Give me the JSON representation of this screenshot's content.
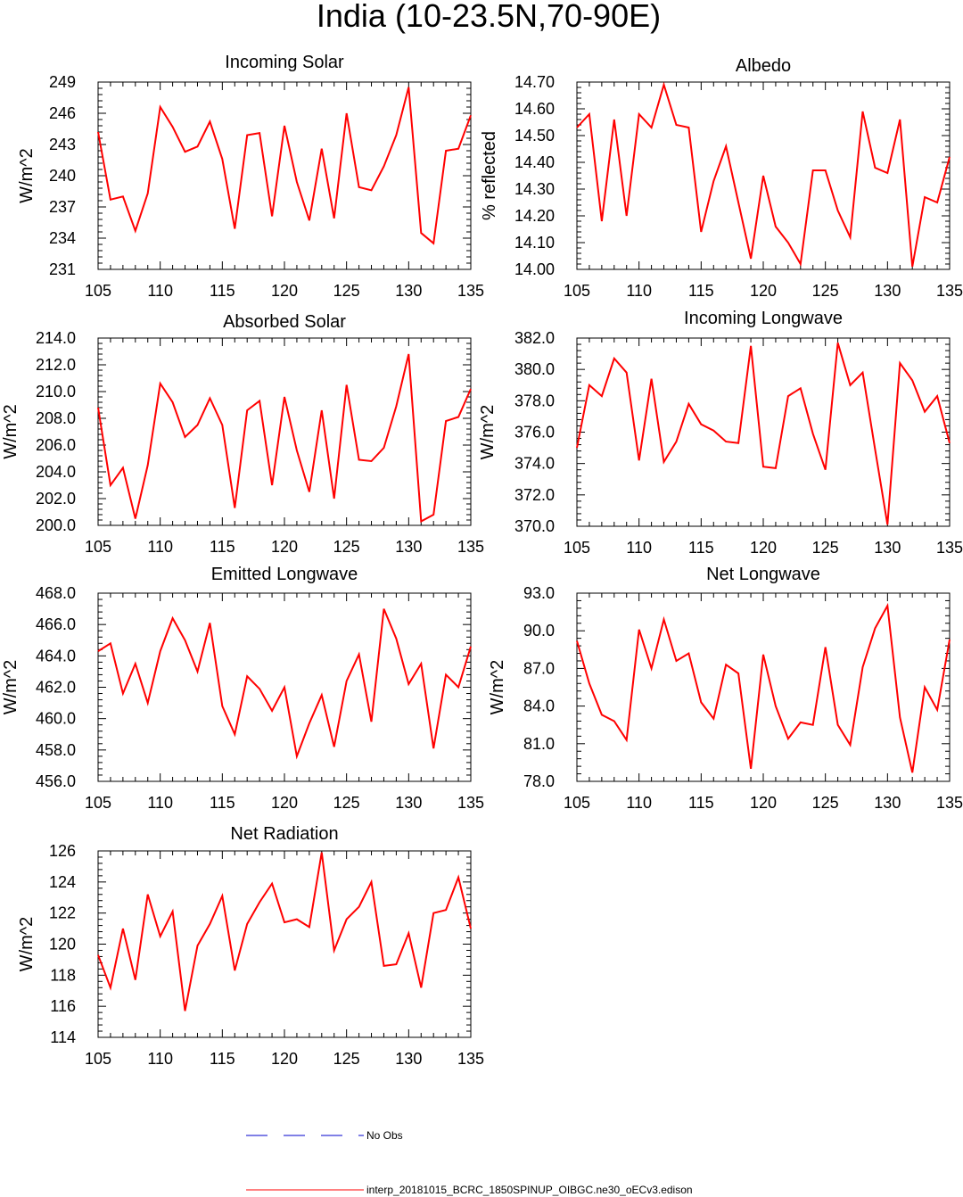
{
  "figure": {
    "title": "India (10-23.5N,70-90E)",
    "series_color": "#ff0000",
    "obs_color": "#0000cc"
  },
  "legend": {
    "obs_label": "No Obs",
    "model_label": "interp_20181015_BCRC_1850SPINUP_OIBGC.ne30_oECv3.edison"
  },
  "chart_data": [
    {
      "type": "line",
      "title": "Incoming Solar",
      "ylabel": "W/m^2",
      "xlim": [
        105,
        135
      ],
      "ylim": [
        231,
        249
      ],
      "xticks": [
        105,
        110,
        115,
        120,
        125,
        130,
        135
      ],
      "yticks": [
        231,
        234,
        237,
        240,
        243,
        246,
        249
      ],
      "ytick_labels": [
        "231",
        "234",
        "237",
        "240",
        "243",
        "246",
        "249"
      ],
      "x": [
        105,
        106,
        107,
        108,
        109,
        110,
        111,
        112,
        113,
        114,
        115,
        116,
        117,
        118,
        119,
        120,
        121,
        122,
        123,
        124,
        125,
        126,
        127,
        128,
        129,
        130,
        131,
        132,
        133,
        134,
        135
      ],
      "y": [
        244.2,
        237.7,
        238.0,
        234.7,
        238.3,
        246.6,
        244.7,
        242.3,
        242.8,
        245.2,
        241.6,
        234.9,
        243.9,
        244.1,
        236.1,
        244.8,
        239.4,
        235.7,
        242.6,
        235.9,
        246.0,
        238.9,
        238.6,
        240.9,
        243.9,
        248.5,
        234.5,
        233.5,
        242.4,
        242.6,
        245.8
      ]
    },
    {
      "type": "line",
      "title": "Albedo",
      "ylabel": "% reflected",
      "xlim": [
        105,
        135
      ],
      "ylim": [
        14.0,
        14.7
      ],
      "xticks": [
        105,
        110,
        115,
        120,
        125,
        130,
        135
      ],
      "yticks": [
        14.0,
        14.1,
        14.2,
        14.3,
        14.4,
        14.5,
        14.6,
        14.7
      ],
      "ytick_labels": [
        "14.00",
        "14.10",
        "14.20",
        "14.30",
        "14.40",
        "14.50",
        "14.60",
        "14.70"
      ],
      "x": [
        105,
        106,
        107,
        108,
        109,
        110,
        111,
        112,
        113,
        114,
        115,
        116,
        117,
        118,
        119,
        120,
        121,
        122,
        123,
        124,
        125,
        126,
        127,
        128,
        129,
        130,
        131,
        132,
        133,
        134,
        135
      ],
      "y": [
        14.53,
        14.58,
        14.18,
        14.56,
        14.2,
        14.58,
        14.53,
        14.69,
        14.54,
        14.53,
        14.14,
        14.33,
        14.46,
        14.25,
        14.04,
        14.35,
        14.16,
        14.1,
        14.02,
        14.37,
        14.37,
        14.22,
        14.12,
        14.59,
        14.38,
        14.36,
        14.56,
        14.01,
        14.27,
        14.25,
        14.42
      ]
    },
    {
      "type": "line",
      "title": "Absorbed Solar",
      "ylabel": "W/m^2",
      "xlim": [
        105,
        135
      ],
      "ylim": [
        200.0,
        214.0
      ],
      "xticks": [
        105,
        110,
        115,
        120,
        125,
        130,
        135
      ],
      "yticks": [
        200,
        202,
        204,
        206,
        208,
        210,
        212,
        214
      ],
      "ytick_labels": [
        "200.0",
        "202.0",
        "204.0",
        "206.0",
        "208.0",
        "210.0",
        "212.0",
        "214.0"
      ],
      "x": [
        105,
        106,
        107,
        108,
        109,
        110,
        111,
        112,
        113,
        114,
        115,
        116,
        117,
        118,
        119,
        120,
        121,
        122,
        123,
        124,
        125,
        126,
        127,
        128,
        129,
        130,
        131,
        132,
        133,
        134,
        135
      ],
      "y": [
        208.8,
        203.0,
        204.3,
        200.5,
        204.5,
        210.6,
        209.2,
        206.6,
        207.5,
        209.5,
        207.5,
        201.3,
        208.6,
        209.3,
        203.0,
        209.6,
        205.6,
        202.5,
        208.6,
        202.0,
        210.5,
        204.9,
        204.8,
        205.8,
        208.9,
        212.8,
        200.3,
        200.8,
        207.8,
        208.1,
        210.2
      ]
    },
    {
      "type": "line",
      "title": "Incoming Longwave",
      "ylabel": "W/m^2",
      "xlim": [
        105,
        135
      ],
      "ylim": [
        370.0,
        382.0
      ],
      "xticks": [
        105,
        110,
        115,
        120,
        125,
        130,
        135
      ],
      "yticks": [
        370,
        372,
        374,
        376,
        378,
        380,
        382
      ],
      "ytick_labels": [
        "370.0",
        "372.0",
        "374.0",
        "376.0",
        "378.0",
        "380.0",
        "382.0"
      ],
      "x": [
        105,
        106,
        107,
        108,
        109,
        110,
        111,
        112,
        113,
        114,
        115,
        116,
        117,
        118,
        119,
        120,
        121,
        122,
        123,
        124,
        125,
        126,
        127,
        128,
        129,
        130,
        131,
        132,
        133,
        134,
        135
      ],
      "y": [
        375.0,
        379.0,
        378.3,
        380.7,
        379.8,
        374.2,
        379.4,
        374.1,
        375.4,
        377.8,
        376.5,
        376.1,
        375.4,
        375.3,
        381.5,
        373.8,
        373.7,
        378.3,
        378.8,
        375.9,
        373.6,
        381.7,
        379.0,
        379.8,
        374.9,
        370.1,
        380.4,
        379.3,
        377.3,
        378.3,
        375.3
      ]
    },
    {
      "type": "line",
      "title": "Emitted Longwave",
      "ylabel": "W/m^2",
      "xlim": [
        105,
        135
      ],
      "ylim": [
        456.0,
        468.0
      ],
      "xticks": [
        105,
        110,
        115,
        120,
        125,
        130,
        135
      ],
      "yticks": [
        456,
        458,
        460,
        462,
        464,
        466,
        468
      ],
      "ytick_labels": [
        "456.0",
        "458.0",
        "460.0",
        "462.0",
        "464.0",
        "466.0",
        "468.0"
      ],
      "x": [
        105,
        106,
        107,
        108,
        109,
        110,
        111,
        112,
        113,
        114,
        115,
        116,
        117,
        118,
        119,
        120,
        121,
        122,
        123,
        124,
        125,
        126,
        127,
        128,
        129,
        130,
        131,
        132,
        133,
        134,
        135
      ],
      "y": [
        464.3,
        464.8,
        461.6,
        463.5,
        461.0,
        464.3,
        466.4,
        465.0,
        463.0,
        466.1,
        460.8,
        459.0,
        462.7,
        461.9,
        460.5,
        462.0,
        457.6,
        459.7,
        461.5,
        458.2,
        462.4,
        464.1,
        459.8,
        467.0,
        465.1,
        462.2,
        463.5,
        458.1,
        462.8,
        462.0,
        464.6
      ]
    },
    {
      "type": "line",
      "title": "Net Longwave",
      "ylabel": "W/m^2",
      "xlim": [
        105,
        135
      ],
      "ylim": [
        78.0,
        93.0
      ],
      "xticks": [
        105,
        110,
        115,
        120,
        125,
        130,
        135
      ],
      "yticks": [
        78,
        81,
        84,
        87,
        90,
        93
      ],
      "ytick_labels": [
        "78.0",
        "81.0",
        "84.0",
        "87.0",
        "90.0",
        "93.0"
      ],
      "x": [
        105,
        106,
        107,
        108,
        109,
        110,
        111,
        112,
        113,
        114,
        115,
        116,
        117,
        118,
        119,
        120,
        121,
        122,
        123,
        124,
        125,
        126,
        127,
        128,
        129,
        130,
        131,
        132,
        133,
        134,
        135
      ],
      "y": [
        89.2,
        85.8,
        83.3,
        82.8,
        81.3,
        90.1,
        87.0,
        90.9,
        87.6,
        88.2,
        84.3,
        83.0,
        87.3,
        86.6,
        79.0,
        88.1,
        84.0,
        81.4,
        82.7,
        82.5,
        88.7,
        82.5,
        80.9,
        87.1,
        90.2,
        92.0,
        83.1,
        78.7,
        85.5,
        83.7,
        89.3
      ]
    },
    {
      "type": "line",
      "title": "Net Radiation",
      "ylabel": "W/m^2",
      "xlim": [
        105,
        135
      ],
      "ylim": [
        114,
        126
      ],
      "xticks": [
        105,
        110,
        115,
        120,
        125,
        130,
        135
      ],
      "yticks": [
        114,
        116,
        118,
        120,
        122,
        124,
        126
      ],
      "ytick_labels": [
        "114",
        "116",
        "118",
        "120",
        "122",
        "124",
        "126"
      ],
      "x": [
        105,
        106,
        107,
        108,
        109,
        110,
        111,
        112,
        113,
        114,
        115,
        116,
        117,
        118,
        119,
        120,
        121,
        122,
        123,
        124,
        125,
        126,
        127,
        128,
        129,
        130,
        131,
        132,
        133,
        134,
        135
      ],
      "y": [
        119.3,
        117.2,
        121.0,
        117.7,
        123.2,
        120.5,
        122.1,
        115.7,
        119.9,
        121.3,
        123.1,
        118.3,
        121.3,
        122.7,
        123.9,
        121.4,
        121.6,
        121.1,
        125.9,
        119.6,
        121.6,
        122.4,
        124.0,
        118.6,
        118.7,
        120.7,
        117.2,
        122.0,
        122.2,
        124.3,
        121.0
      ]
    }
  ]
}
